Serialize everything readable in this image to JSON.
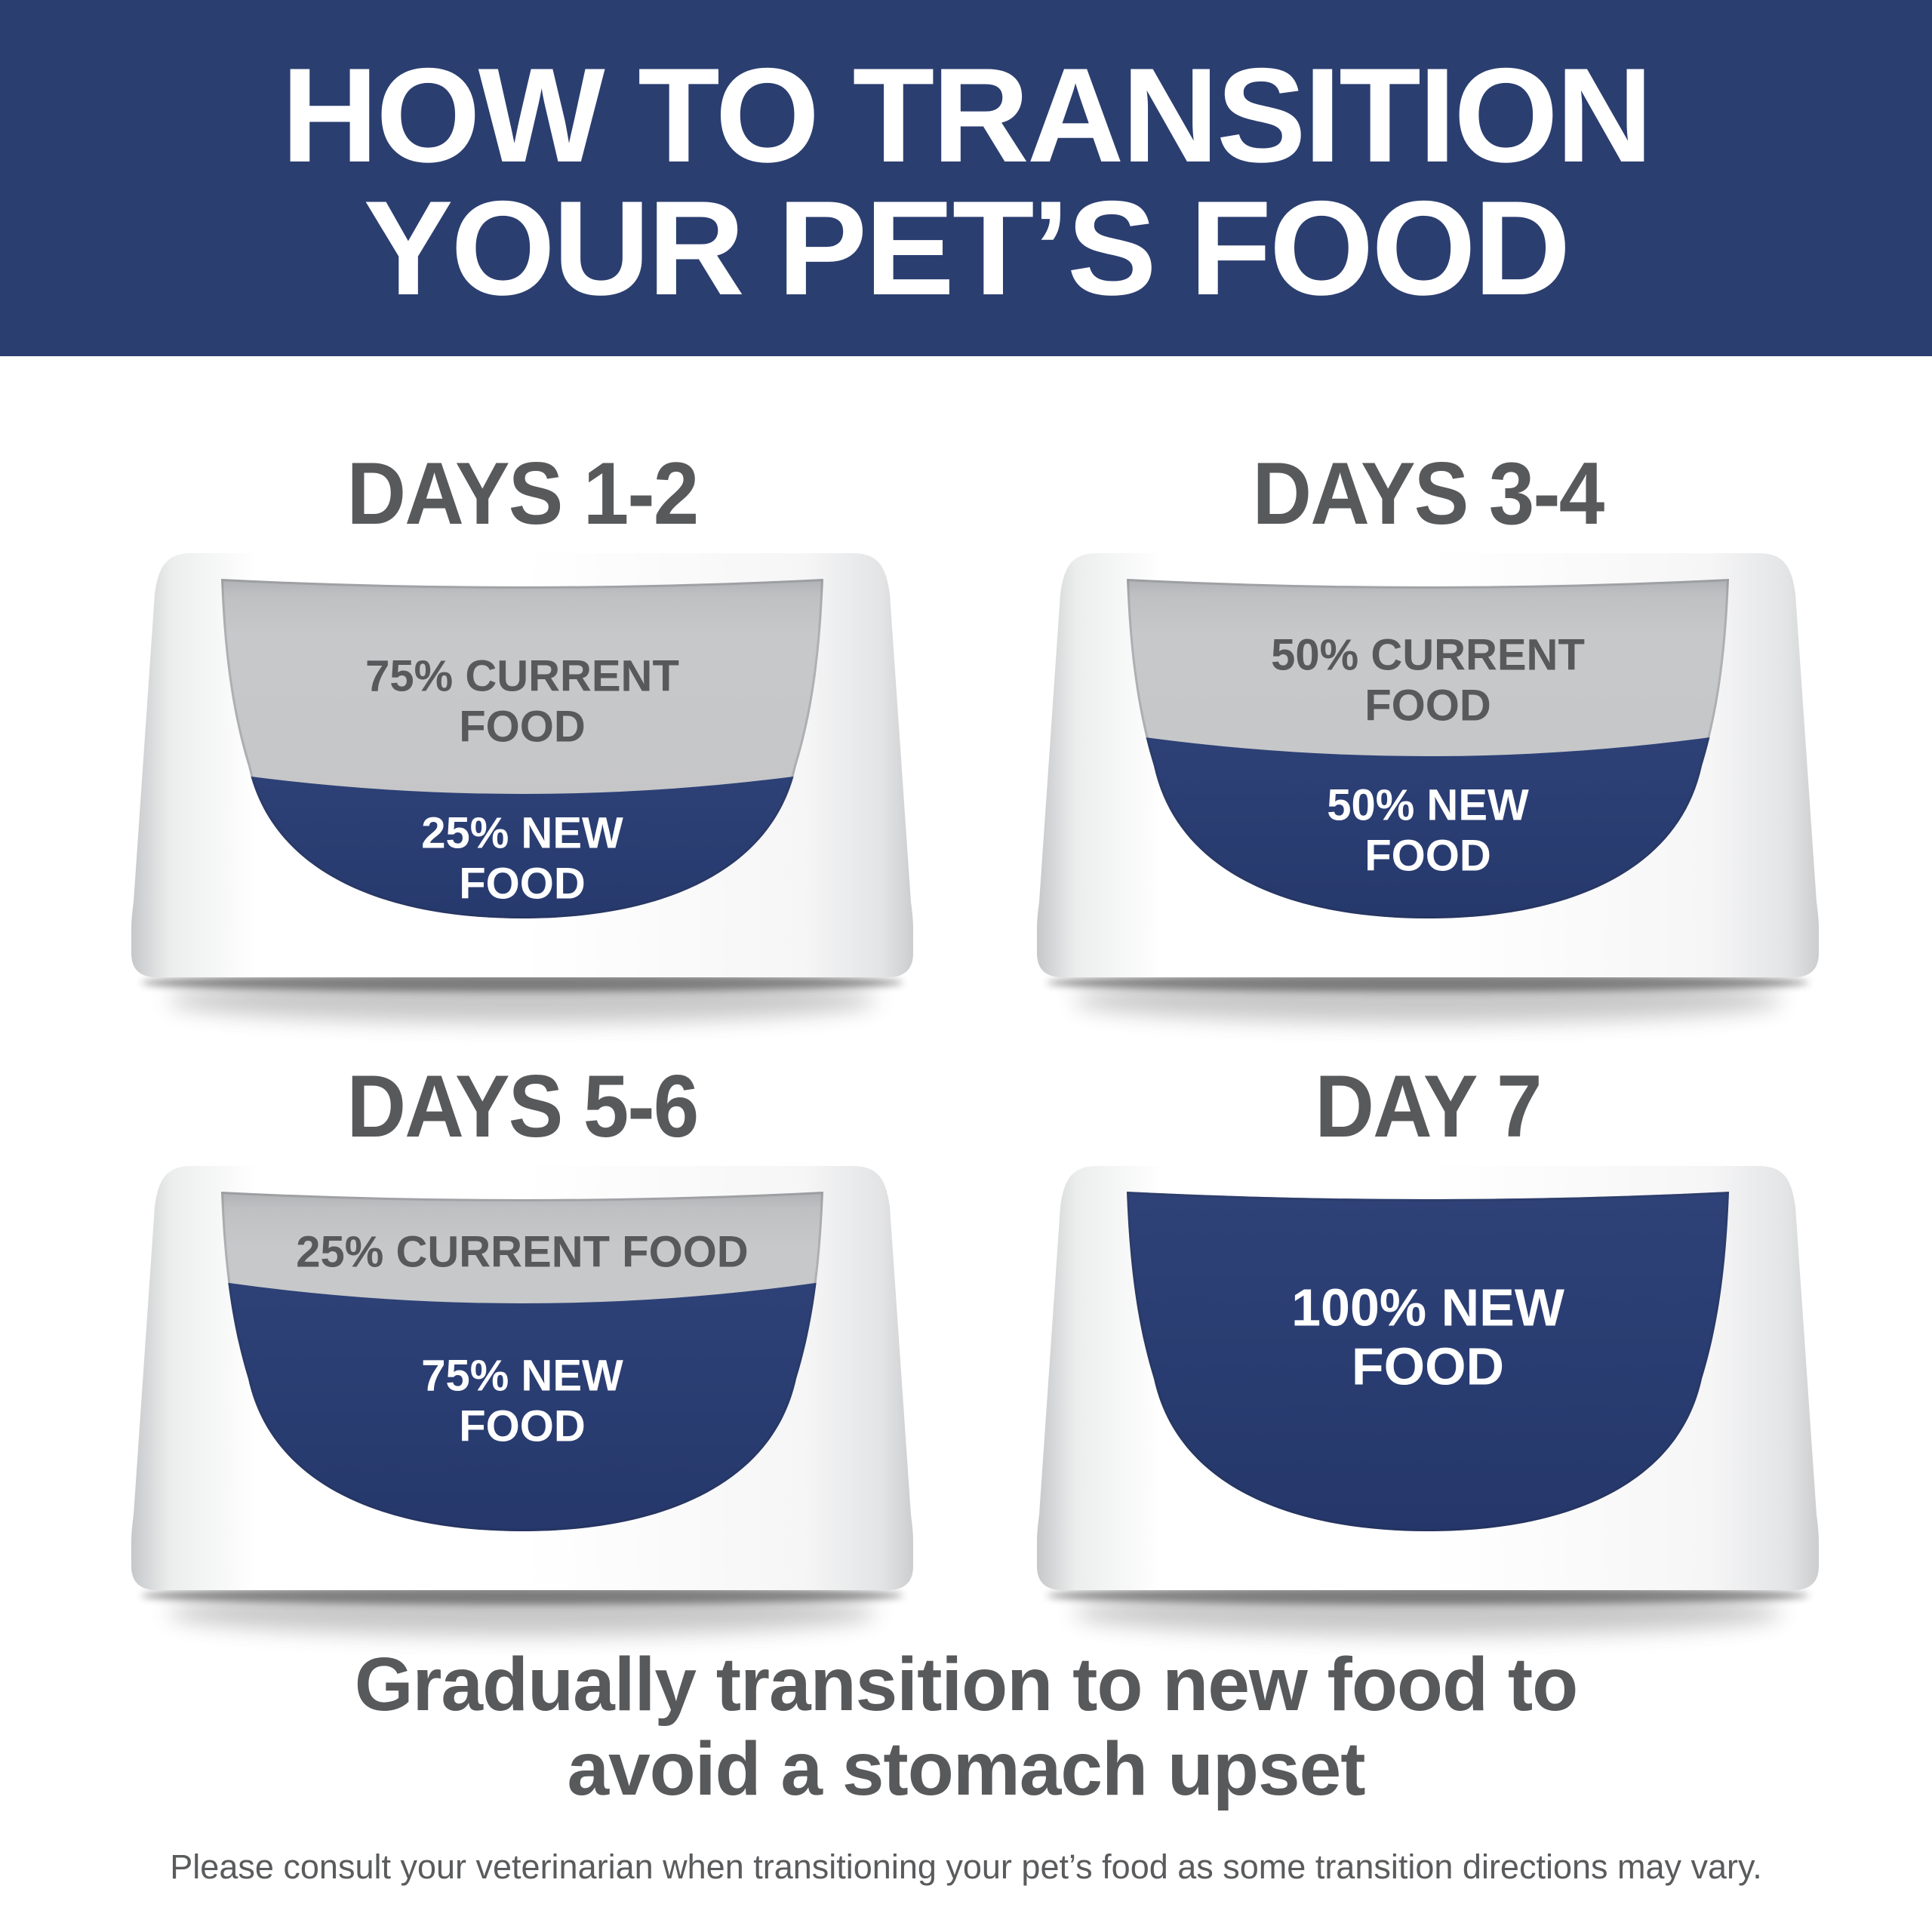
{
  "header": {
    "title_line1": "HOW TO TRANSITION",
    "title_line2": "YOUR PET’S FOOD"
  },
  "bowls": [
    {
      "heading": "DAYS 1-2",
      "current_food_percent": 75,
      "new_food_percent": 25,
      "current_lines": [
        "75% CURRENT",
        "FOOD"
      ],
      "new_lines": [
        "25% NEW",
        "FOOD"
      ]
    },
    {
      "heading": "DAYS 3-4",
      "current_food_percent": 50,
      "new_food_percent": 50,
      "current_lines": [
        "50% CURRENT",
        "FOOD"
      ],
      "new_lines": [
        "50% NEW",
        "FOOD"
      ]
    },
    {
      "heading": "DAYS 5-6",
      "current_food_percent": 25,
      "new_food_percent": 75,
      "current_lines": [
        "25% CURRENT FOOD"
      ],
      "new_lines": [
        "75% NEW",
        "FOOD"
      ]
    },
    {
      "heading": "DAY 7",
      "current_food_percent": 0,
      "new_food_percent": 100,
      "current_lines": [],
      "new_lines": [
        "100% NEW",
        "FOOD"
      ]
    }
  ],
  "tagline": {
    "line1": "Gradually transition to new food to",
    "line2": "avoid a stomach upset"
  },
  "footnote": "Please consult your veterinarian when transitioning your pet’s food as some transition directions may vary.",
  "colors": {
    "banner_navy": "#2b3e70",
    "food_blue": "#273a6e",
    "food_gray": "#c7c8ca",
    "text_gray": "#58595b",
    "text_white": "#ffffff",
    "page_bg": "#ffffff"
  }
}
